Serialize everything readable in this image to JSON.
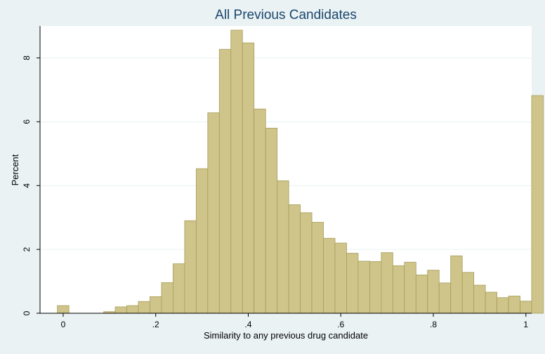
{
  "chart_data": {
    "type": "bar",
    "title": "All Previous Candidates",
    "xlabel": "Similarity to any previous drug candidate",
    "ylabel": "Percent",
    "xlim": [
      -0.05,
      1.0125
    ],
    "ylim": [
      0,
      9
    ],
    "bin_width": 0.025,
    "x_ticks": [
      {
        "value": 0,
        "label": "0"
      },
      {
        "value": 0.2,
        "label": ".2"
      },
      {
        "value": 0.4,
        "label": ".4"
      },
      {
        "value": 0.6,
        "label": ".6"
      },
      {
        "value": 0.8,
        "label": ".8"
      },
      {
        "value": 1,
        "label": "1"
      }
    ],
    "y_ticks": [
      {
        "value": 0,
        "label": "0"
      },
      {
        "value": 2,
        "label": "2"
      },
      {
        "value": 4,
        "label": "4"
      },
      {
        "value": 6,
        "label": "6"
      },
      {
        "value": 8,
        "label": "8"
      }
    ],
    "grid": true,
    "bins": [
      {
        "x": 0.0,
        "value": 0.24
      },
      {
        "x": 0.1,
        "value": 0.05
      },
      {
        "x": 0.125,
        "value": 0.2
      },
      {
        "x": 0.15,
        "value": 0.24
      },
      {
        "x": 0.175,
        "value": 0.37
      },
      {
        "x": 0.2,
        "value": 0.52
      },
      {
        "x": 0.225,
        "value": 0.96
      },
      {
        "x": 0.25,
        "value": 1.55
      },
      {
        "x": 0.275,
        "value": 2.9
      },
      {
        "x": 0.3,
        "value": 4.53
      },
      {
        "x": 0.325,
        "value": 6.28
      },
      {
        "x": 0.35,
        "value": 8.27
      },
      {
        "x": 0.375,
        "value": 8.87
      },
      {
        "x": 0.4,
        "value": 8.47
      },
      {
        "x": 0.425,
        "value": 6.4
      },
      {
        "x": 0.45,
        "value": 5.8
      },
      {
        "x": 0.475,
        "value": 4.15
      },
      {
        "x": 0.5,
        "value": 3.4
      },
      {
        "x": 0.525,
        "value": 3.15
      },
      {
        "x": 0.55,
        "value": 2.85
      },
      {
        "x": 0.575,
        "value": 2.35
      },
      {
        "x": 0.6,
        "value": 2.2
      },
      {
        "x": 0.625,
        "value": 1.88
      },
      {
        "x": 0.65,
        "value": 1.63
      },
      {
        "x": 0.675,
        "value": 1.62
      },
      {
        "x": 0.7,
        "value": 1.9
      },
      {
        "x": 0.725,
        "value": 1.49
      },
      {
        "x": 0.75,
        "value": 1.6
      },
      {
        "x": 0.775,
        "value": 1.2
      },
      {
        "x": 0.8,
        "value": 1.35
      },
      {
        "x": 0.825,
        "value": 0.95
      },
      {
        "x": 0.85,
        "value": 1.8
      },
      {
        "x": 0.875,
        "value": 1.28
      },
      {
        "x": 0.9,
        "value": 0.88
      },
      {
        "x": 0.925,
        "value": 0.66
      },
      {
        "x": 0.95,
        "value": 0.49
      },
      {
        "x": 0.975,
        "value": 0.54
      },
      {
        "x": 1.0,
        "value": 0.38
      },
      {
        "x": 1.025,
        "value": 6.82
      }
    ],
    "colors": {
      "bar_fill": "#cfc58a",
      "bar_stroke": "#a69d58",
      "title": "#1a476f",
      "plot_background": "#ffffff",
      "page_background": "#eaf2f3"
    }
  }
}
